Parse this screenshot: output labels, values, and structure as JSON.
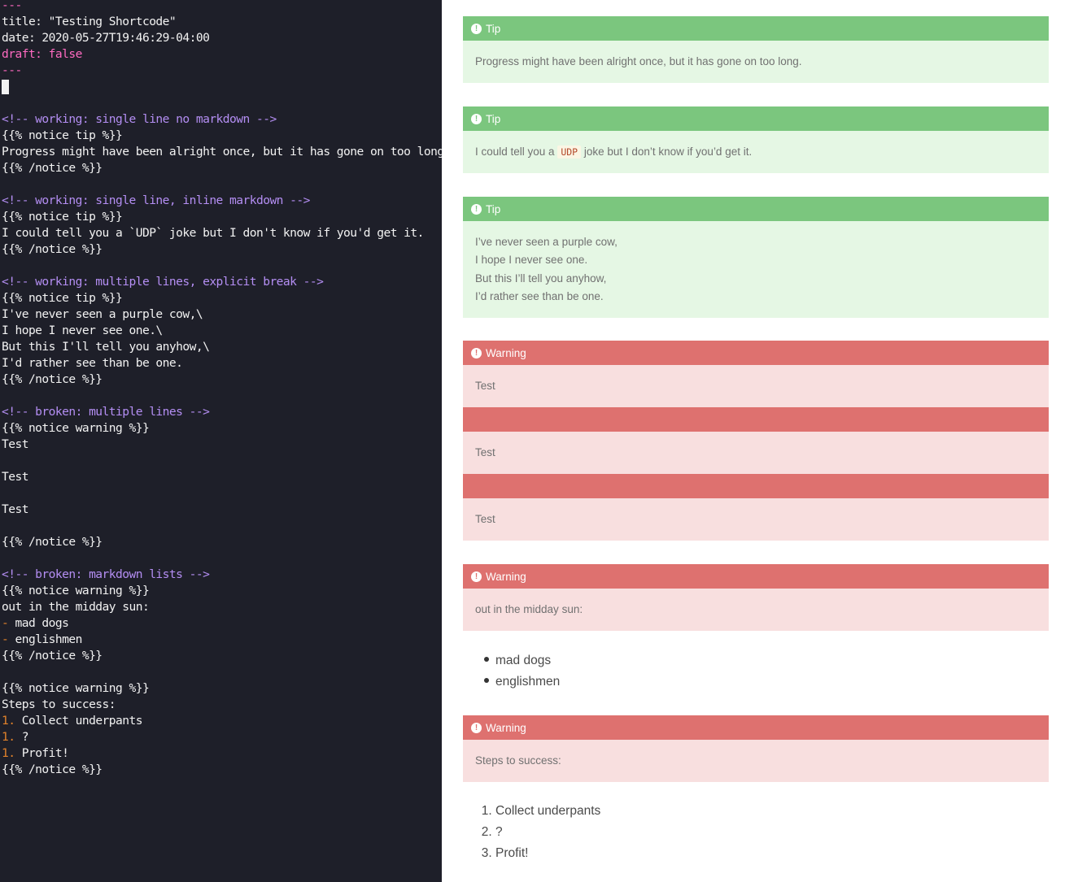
{
  "editor": {
    "lines": [
      {
        "text": "---",
        "color": "fm"
      },
      {
        "text": "title: \"Testing Shortcode\"",
        "color": "default"
      },
      {
        "text": "date: 2020-05-27T19:46:29-04:00",
        "color": "default"
      },
      {
        "text": "draft: false",
        "color": "fm"
      },
      {
        "text": "---",
        "color": "fm"
      },
      {
        "text": "",
        "color": "cursor"
      },
      {
        "text": "",
        "color": "default"
      },
      {
        "text": "<!-- working: single line no markdown -->",
        "color": "comment"
      },
      {
        "text": "{{% notice tip %}}",
        "color": "default"
      },
      {
        "text": "Progress might have been alright once, but it has gone on too long.",
        "color": "default"
      },
      {
        "text": "{{% /notice %}}",
        "color": "default"
      },
      {
        "text": "",
        "color": "default"
      },
      {
        "text": "<!-- working: single line, inline markdown -->",
        "color": "comment"
      },
      {
        "text": "{{% notice tip %}}",
        "color": "default"
      },
      {
        "text": "I could tell you a `UDP` joke but I don't know if you'd get it.",
        "color": "default"
      },
      {
        "text": "{{% /notice %}}",
        "color": "default"
      },
      {
        "text": "",
        "color": "default"
      },
      {
        "text": "<!-- working: multiple lines, explicit break -->",
        "color": "comment"
      },
      {
        "text": "{{% notice tip %}}",
        "color": "default"
      },
      {
        "text": "I've never seen a purple cow,\\",
        "color": "default"
      },
      {
        "text": "I hope I never see one.\\",
        "color": "default"
      },
      {
        "text": "But this I'll tell you anyhow,\\",
        "color": "default"
      },
      {
        "text": "I'd rather see than be one.",
        "color": "default"
      },
      {
        "text": "{{% /notice %}}",
        "color": "default"
      },
      {
        "text": "",
        "color": "default"
      },
      {
        "text": "<!-- broken: multiple lines -->",
        "color": "comment"
      },
      {
        "text": "{{% notice warning %}}",
        "color": "default"
      },
      {
        "text": "Test",
        "color": "default"
      },
      {
        "text": "",
        "color": "default"
      },
      {
        "text": "Test",
        "color": "default"
      },
      {
        "text": "",
        "color": "default"
      },
      {
        "text": "Test",
        "color": "default"
      },
      {
        "text": "",
        "color": "default"
      },
      {
        "text": "{{% /notice %}}",
        "color": "default"
      },
      {
        "text": "",
        "color": "default"
      },
      {
        "text": "<!-- broken: markdown lists -->",
        "color": "comment"
      },
      {
        "text": "{{% notice warning %}}",
        "color": "default"
      },
      {
        "text": "out in the midday sun:",
        "color": "default"
      },
      {
        "text": "mad dogs",
        "color": "default",
        "marker": "- "
      },
      {
        "text": "englishmen",
        "color": "default",
        "marker": "- "
      },
      {
        "text": "{{% /notice %}}",
        "color": "default"
      },
      {
        "text": "",
        "color": "default"
      },
      {
        "text": "{{% notice warning %}}",
        "color": "default"
      },
      {
        "text": "Steps to success:",
        "color": "default"
      },
      {
        "text": "Collect underpants",
        "color": "default",
        "marker": "1. "
      },
      {
        "text": "?",
        "color": "default",
        "marker": "1. "
      },
      {
        "text": "Profit!",
        "color": "default",
        "marker": "1. "
      },
      {
        "text": "{{% /notice %}}",
        "color": "default"
      }
    ]
  },
  "preview": {
    "tip1": {
      "title": "Tip",
      "text": "Progress might have been alright once, but it has gone on too long."
    },
    "tip2": {
      "title": "Tip",
      "before": "I could tell you a ",
      "code": "UDP",
      "after": " joke but I don’t know if you’d get it."
    },
    "tip3": {
      "title": "Tip",
      "lines": [
        "I’ve never seen a purple cow,",
        "I hope I never see one.",
        "But this I’ll tell you anyhow,",
        "I’d rather see than be one."
      ]
    },
    "warn1": {
      "title": "Warning",
      "tests": [
        "Test",
        "Test",
        "Test"
      ]
    },
    "warn2": {
      "title": "Warning",
      "text": "out in the midday sun:"
    },
    "list1": [
      "mad dogs",
      "englishmen"
    ],
    "warn3": {
      "title": "Warning",
      "text": "Steps to success:"
    },
    "list2": [
      "Collect underpants",
      "?",
      "Profit!"
    ],
    "icon": "!"
  }
}
